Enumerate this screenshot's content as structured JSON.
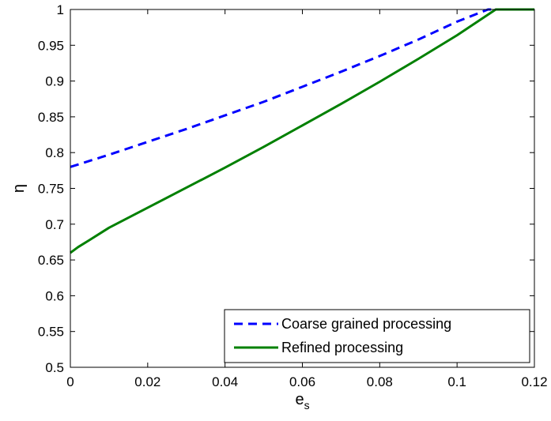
{
  "chart_data": {
    "type": "line",
    "title": "",
    "xlabel": "e",
    "xlabel_subscript": "s",
    "ylabel": "η",
    "xlim": [
      0,
      0.12
    ],
    "ylim": [
      0.5,
      1
    ],
    "xticks": [
      0,
      0.02,
      0.04,
      0.06,
      0.08,
      0.1,
      0.12
    ],
    "xtick_labels": [
      "0",
      "0.02",
      "0.04",
      "0.06",
      "0.08",
      "0.1",
      "0.12"
    ],
    "yticks": [
      0.5,
      0.55,
      0.6,
      0.65,
      0.7,
      0.75,
      0.8,
      0.85,
      0.9,
      0.95,
      1
    ],
    "ytick_labels": [
      "0.5",
      "0.55",
      "0.6",
      "0.65",
      "0.7",
      "0.75",
      "0.8",
      "0.85",
      "0.9",
      "0.95",
      "1"
    ],
    "grid": false,
    "legend_position": "bottom-right",
    "series": [
      {
        "name": "Coarse grained processing",
        "color": "#0000ff",
        "style": "dashed",
        "x": [
          0,
          0.01,
          0.02,
          0.03,
          0.04,
          0.05,
          0.06,
          0.07,
          0.08,
          0.09,
          0.1,
          0.108,
          0.11,
          0.115,
          0.12
        ],
        "y": [
          0.78,
          0.797,
          0.815,
          0.833,
          0.852,
          0.871,
          0.892,
          0.913,
          0.935,
          0.958,
          0.983,
          1.0,
          1.0,
          1.0,
          1.0
        ]
      },
      {
        "name": "Refined processing",
        "color": "#008000",
        "style": "solid",
        "x": [
          0,
          0.002,
          0.005,
          0.01,
          0.02,
          0.03,
          0.04,
          0.05,
          0.06,
          0.07,
          0.08,
          0.09,
          0.1,
          0.11,
          0.115,
          0.12
        ],
        "y": [
          0.66,
          0.668,
          0.678,
          0.695,
          0.723,
          0.751,
          0.779,
          0.808,
          0.838,
          0.868,
          0.899,
          0.931,
          0.964,
          1.0,
          1.0,
          1.0
        ]
      }
    ]
  }
}
